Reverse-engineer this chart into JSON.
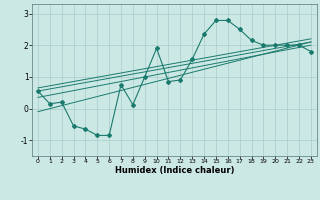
{
  "title": "",
  "xlabel": "Humidex (Indice chaleur)",
  "ylabel": "",
  "bg_color": "#cce8e4",
  "line_color": "#1a7a6e",
  "grid_color": "#aacccc",
  "xlim": [
    -0.5,
    23.5
  ],
  "ylim": [
    -1.5,
    3.3
  ],
  "xticks": [
    0,
    1,
    2,
    3,
    4,
    5,
    6,
    7,
    8,
    9,
    10,
    11,
    12,
    13,
    14,
    15,
    16,
    17,
    18,
    19,
    20,
    21,
    22,
    23
  ],
  "yticks": [
    -1,
    0,
    1,
    2,
    3
  ],
  "main_line_x": [
    0,
    1,
    2,
    3,
    4,
    5,
    6,
    7,
    8,
    9,
    10,
    11,
    12,
    13,
    14,
    15,
    16,
    17,
    18,
    19,
    20,
    21,
    22,
    23
  ],
  "main_line_y": [
    0.55,
    0.15,
    0.2,
    -0.55,
    -0.65,
    -0.85,
    -0.85,
    0.75,
    0.12,
    1.0,
    1.9,
    0.85,
    0.9,
    1.55,
    2.35,
    2.78,
    2.78,
    2.5,
    2.15,
    2.0,
    2.0,
    2.0,
    2.0,
    1.8
  ],
  "reg_lines": [
    {
      "x": [
        0,
        23
      ],
      "y": [
        -0.1,
        2.1
      ]
    },
    {
      "x": [
        0,
        23
      ],
      "y": [
        0.35,
        2.0
      ]
    },
    {
      "x": [
        0,
        23
      ],
      "y": [
        0.55,
        2.1
      ]
    },
    {
      "x": [
        0,
        23
      ],
      "y": [
        0.65,
        2.2
      ]
    }
  ]
}
